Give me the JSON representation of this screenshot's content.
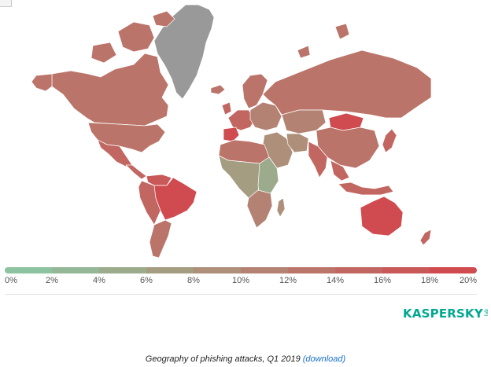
{
  "map": {
    "regions": [
      {
        "name": "Greenland",
        "level": "no-data"
      },
      {
        "name": "Canada",
        "level": 13
      },
      {
        "name": "United States",
        "level": 12
      },
      {
        "name": "Mexico",
        "level": 14
      },
      {
        "name": "Central America",
        "level": 15
      },
      {
        "name": "Brazil",
        "level": 20
      },
      {
        "name": "Venezuela",
        "level": 17
      },
      {
        "name": "South America West",
        "level": 14
      },
      {
        "name": "Argentina",
        "level": 13
      },
      {
        "name": "Iceland",
        "level": 13
      },
      {
        "name": "Western Europe",
        "level": 15
      },
      {
        "name": "Iberia",
        "level": 18
      },
      {
        "name": "Scandinavia",
        "level": 12
      },
      {
        "name": "Eastern Europe",
        "level": 11
      },
      {
        "name": "Russia",
        "level": 13
      },
      {
        "name": "Kazakhstan",
        "level": 10
      },
      {
        "name": "Mongolia",
        "level": 18
      },
      {
        "name": "China",
        "level": 12
      },
      {
        "name": "India",
        "level": 15
      },
      {
        "name": "Middle East",
        "level": 9
      },
      {
        "name": "Iran",
        "level": 8
      },
      {
        "name": "North Africa",
        "level": 13
      },
      {
        "name": "Central Africa",
        "level": 6
      },
      {
        "name": "East Africa",
        "level": 5
      },
      {
        "name": "Southern Africa",
        "level": 10
      },
      {
        "name": "Madagascar",
        "level": 9
      },
      {
        "name": "Southeast Asia",
        "level": 14
      },
      {
        "name": "Indonesia",
        "level": 14
      },
      {
        "name": "Japan",
        "level": 14
      },
      {
        "name": "Australia",
        "level": 18
      },
      {
        "name": "New Zealand",
        "level": 14
      }
    ]
  },
  "scale": {
    "colors": [
      "#8ec3a1",
      "#94b797",
      "#9cab8c",
      "#a49d82",
      "#ad8f7a",
      "#b48272",
      "#bb7469",
      "#c26661",
      "#c95858",
      "#d04b4f"
    ],
    "no_data_color": "#999999",
    "labels": [
      "0%",
      "2%",
      "4%",
      "6%",
      "8%",
      "10%",
      "12%",
      "14%",
      "16%",
      "18%",
      "20%"
    ]
  },
  "logo": {
    "text": "KASPERSKY",
    "sub": "lab"
  },
  "caption": {
    "text": "Geography of phishing attacks, Q1 2019",
    "link": "(download)"
  }
}
